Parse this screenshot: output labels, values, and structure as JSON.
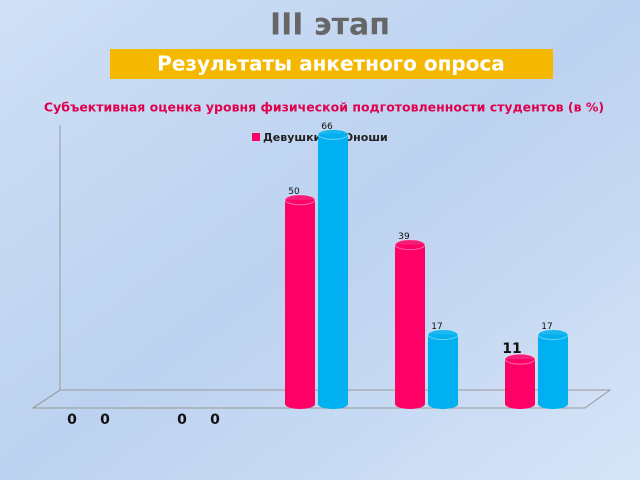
{
  "title": "III этап",
  "subtitle": "Результаты анкетного опроса",
  "chart_data": {
    "type": "bar",
    "title": "Субъективная оценка уровня физической подготовленности студентов (в %)",
    "categories": [
      null,
      null,
      null,
      null,
      null
    ],
    "series": [
      {
        "name": "Девушки",
        "color": "#ff0066",
        "values": [
          0,
          0,
          50,
          39,
          11
        ]
      },
      {
        "name": "Юноши",
        "color": "#00b0f0",
        "values": [
          0,
          0,
          66,
          17,
          17
        ]
      }
    ],
    "ylim": [
      0,
      70
    ],
    "legend": "top"
  }
}
